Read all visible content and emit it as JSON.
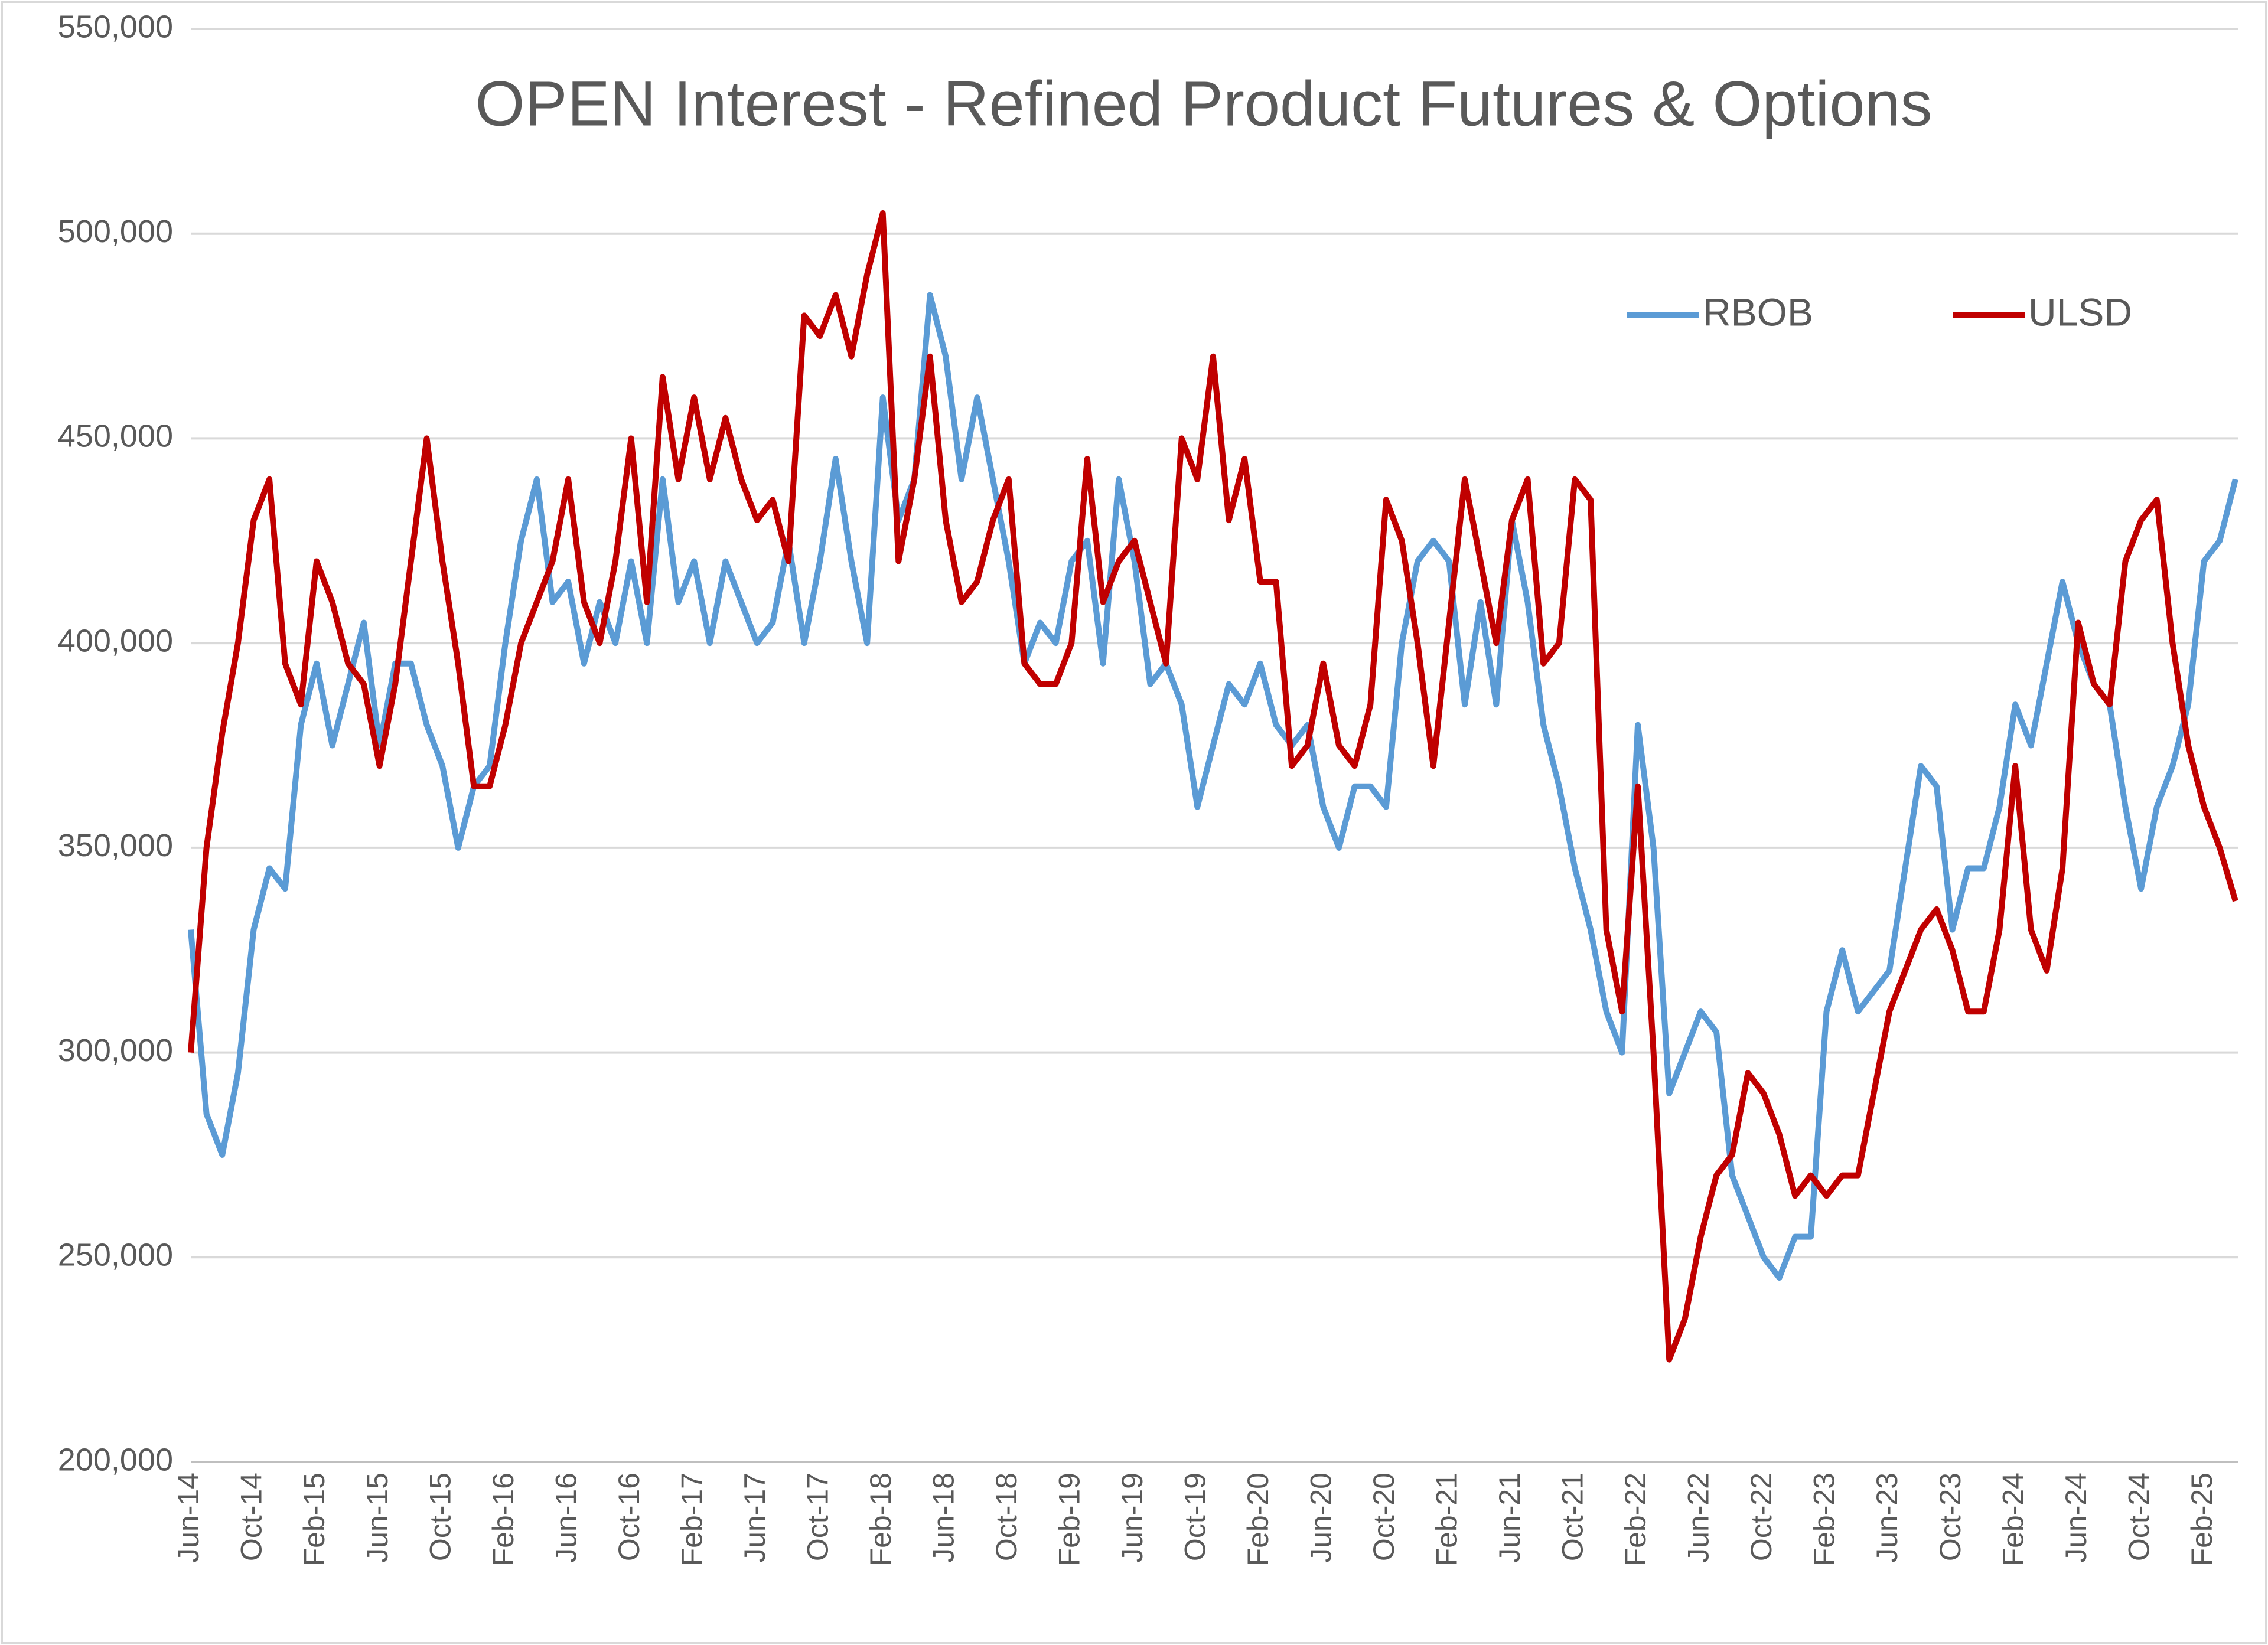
{
  "chart_data": {
    "type": "line",
    "title": "OPEN Interest - Refined Product Futures & Options",
    "categories": [
      "Jun-14",
      null,
      null,
      null,
      "Oct-14",
      null,
      null,
      null,
      "Feb-15",
      null,
      null,
      null,
      "Jun-15",
      null,
      null,
      null,
      "Oct-15",
      null,
      null,
      null,
      "Feb-16",
      null,
      null,
      null,
      "Jun-16",
      null,
      null,
      null,
      "Oct-16",
      null,
      null,
      null,
      "Feb-17",
      null,
      null,
      null,
      "Jun-17",
      null,
      null,
      null,
      "Oct-17",
      null,
      null,
      null,
      "Feb-18",
      null,
      null,
      null,
      "Jun-18",
      null,
      null,
      null,
      "Oct-18",
      null,
      null,
      null,
      "Feb-19",
      null,
      null,
      null,
      "Jun-19",
      null,
      null,
      null,
      "Oct-19",
      null,
      null,
      null,
      "Feb-20",
      null,
      null,
      null,
      "Jun-20",
      null,
      null,
      null,
      "Oct-20",
      null,
      null,
      null,
      "Feb-21",
      null,
      null,
      null,
      "Jun-21",
      null,
      null,
      null,
      "Oct-21",
      null,
      null,
      null,
      "Feb-22",
      null,
      null,
      null,
      "Jun-22",
      null,
      null,
      null,
      "Oct-22",
      null,
      null,
      null,
      "Feb-23",
      null,
      null,
      null,
      "Jun-23",
      null,
      null,
      null,
      "Oct-23",
      null,
      null,
      null,
      "Feb-24",
      null,
      null,
      null,
      "Jun-24",
      null,
      null,
      null,
      "Oct-24",
      null,
      null,
      null,
      "Feb-25",
      null,
      null
    ],
    "series": [
      {
        "name": "RBOB",
        "color": "#5b9bd5",
        "values": [
          330000,
          285000,
          275000,
          295000,
          330000,
          345000,
          340000,
          380000,
          395000,
          375000,
          390000,
          405000,
          375000,
          395000,
          395000,
          380000,
          370000,
          350000,
          365000,
          370000,
          400000,
          425000,
          440000,
          410000,
          415000,
          395000,
          410000,
          400000,
          420000,
          400000,
          440000,
          410000,
          420000,
          400000,
          420000,
          410000,
          400000,
          405000,
          425000,
          400000,
          420000,
          445000,
          420000,
          400000,
          460000,
          430000,
          440000,
          485000,
          470000,
          440000,
          460000,
          440000,
          420000,
          395000,
          405000,
          400000,
          420000,
          425000,
          395000,
          440000,
          420000,
          390000,
          395000,
          385000,
          360000,
          375000,
          390000,
          385000,
          395000,
          380000,
          375000,
          380000,
          360000,
          350000,
          365000,
          365000,
          360000,
          400000,
          420000,
          425000,
          420000,
          385000,
          410000,
          385000,
          430000,
          410000,
          380000,
          365000,
          345000,
          330000,
          310000,
          300000,
          380000,
          350000,
          290000,
          300000,
          310000,
          305000,
          270000,
          260000,
          250000,
          245000,
          255000,
          255000,
          310000,
          325000,
          310000,
          315000,
          320000,
          345000,
          370000,
          365000,
          330000,
          345000,
          345000,
          360000,
          385000,
          375000,
          395000,
          415000,
          400000,
          390000,
          385000,
          360000,
          340000,
          360000,
          370000,
          385000,
          420000,
          425000,
          440000
        ]
      },
      {
        "name": "ULSD",
        "color": "#c00000",
        "values": [
          300000,
          350000,
          378000,
          400000,
          430000,
          440000,
          395000,
          385000,
          420000,
          410000,
          395000,
          390000,
          370000,
          390000,
          420000,
          450000,
          420000,
          395000,
          365000,
          365000,
          380000,
          400000,
          410000,
          420000,
          440000,
          410000,
          400000,
          420000,
          450000,
          410000,
          465000,
          440000,
          460000,
          440000,
          455000,
          440000,
          430000,
          435000,
          420000,
          480000,
          475000,
          485000,
          470000,
          490000,
          505000,
          420000,
          440000,
          470000,
          430000,
          410000,
          415000,
          430000,
          440000,
          395000,
          390000,
          390000,
          400000,
          445000,
          410000,
          420000,
          425000,
          410000,
          395000,
          450000,
          440000,
          470000,
          430000,
          445000,
          415000,
          415000,
          370000,
          375000,
          395000,
          375000,
          370000,
          385000,
          435000,
          425000,
          400000,
          370000,
          405000,
          440000,
          420000,
          400000,
          430000,
          440000,
          395000,
          400000,
          440000,
          435000,
          330000,
          310000,
          365000,
          300000,
          225000,
          235000,
          255000,
          270000,
          275000,
          295000,
          290000,
          280000,
          265000,
          270000,
          265000,
          270000,
          270000,
          290000,
          310000,
          320000,
          330000,
          335000,
          325000,
          310000,
          310000,
          330000,
          370000,
          330000,
          320000,
          345000,
          405000,
          390000,
          385000,
          420000,
          430000,
          435000,
          400000,
          375000,
          360000,
          350000,
          337000
        ]
      }
    ],
    "ylim": [
      200000,
      550000
    ],
    "yticks": [
      {
        "value": 200000,
        "label": "200,000"
      },
      {
        "value": 250000,
        "label": "250,000"
      },
      {
        "value": 300000,
        "label": "300,000"
      },
      {
        "value": 350000,
        "label": "350,000"
      },
      {
        "value": 400000,
        "label": "400,000"
      },
      {
        "value": 450000,
        "label": "450,000"
      },
      {
        "value": 500000,
        "label": "500,000"
      },
      {
        "value": 550000,
        "label": "550,000"
      }
    ],
    "grid": true
  }
}
